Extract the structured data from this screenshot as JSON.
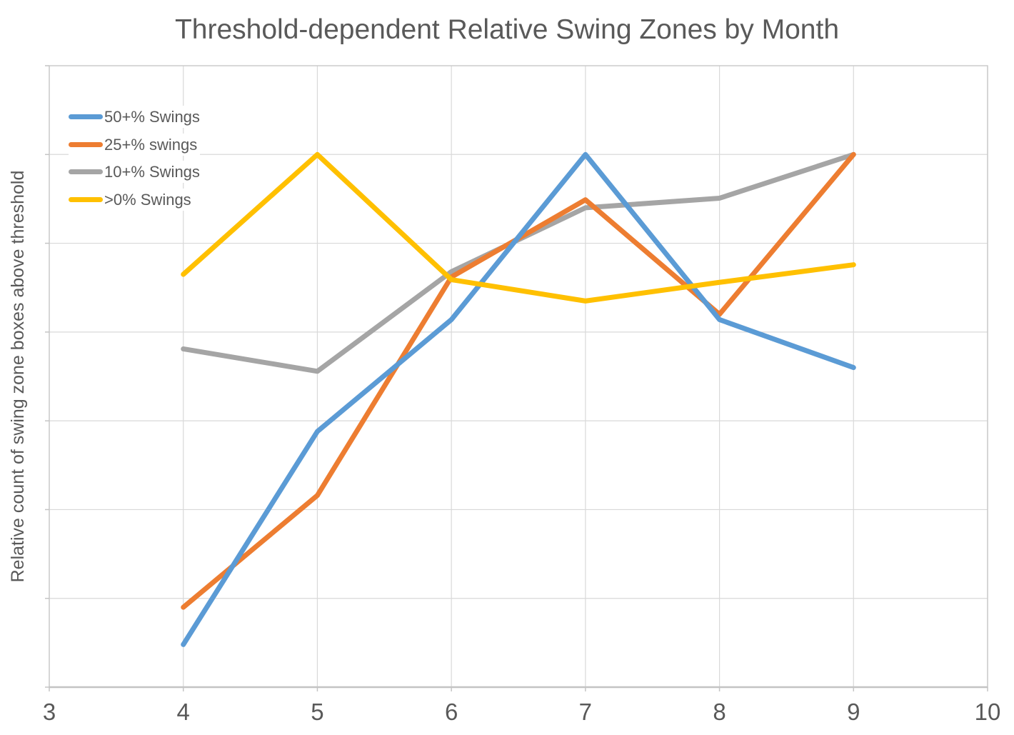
{
  "title": "Threshold-dependent Relative Swing Zones by Month",
  "chart_data": {
    "type": "line",
    "title": "Threshold-dependent Relative Swing Zones by Month",
    "xlabel": "",
    "ylabel": "Relative count of swing zone boxes above threshold",
    "x": [
      4,
      5,
      6,
      7,
      8,
      9
    ],
    "x_axis_ticks": [
      3,
      4,
      5,
      6,
      7,
      8,
      9,
      10
    ],
    "xlim": [
      3,
      10
    ],
    "ylim": [
      0,
      1.1667
    ],
    "y_gridline_count": 7,
    "y_tick_labels_visible": false,
    "grid": true,
    "legend_position": "top-left-inside",
    "series": [
      {
        "name": "50+% Swings",
        "color": "#5B9BD5",
        "values": [
          0.08,
          0.48,
          0.69,
          1.0,
          0.69,
          0.6
        ]
      },
      {
        "name": "25+% swings",
        "color": "#ED7D31",
        "values": [
          0.15,
          0.36,
          0.77,
          0.915,
          0.7,
          1.0
        ]
      },
      {
        "name": "10+% Swings",
        "color": "#A5A5A5",
        "values": [
          0.635,
          0.593,
          0.78,
          0.9,
          0.918,
          1.0
        ]
      },
      {
        "name": ">0% Swings",
        "color": "#FFC000",
        "values": [
          0.775,
          1.0,
          0.765,
          0.725,
          0.76,
          0.793
        ]
      }
    ],
    "draw_order": [
      2,
      1,
      0,
      3
    ],
    "line_width": 7,
    "colors": {
      "gridline": "#D9D9D9",
      "plot_border": "#CBCBCB",
      "axis_line": "#C4C4C4",
      "text": "#595959",
      "background": "#FFFFFF"
    }
  }
}
